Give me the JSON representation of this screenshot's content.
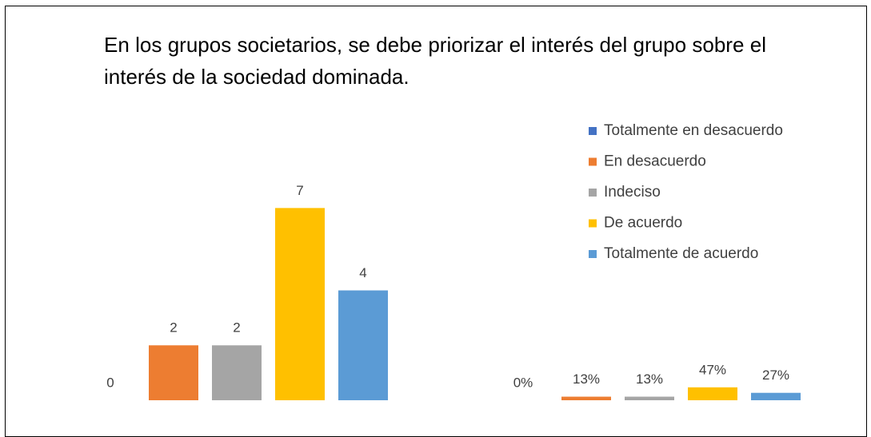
{
  "chart_data": {
    "type": "bar",
    "title": "En los grupos societarios, se debe priorizar el interés del grupo sobre el interés de la sociedad dominada.",
    "categories": [
      null,
      null
    ],
    "series": [
      {
        "name": "Totalmente en desacuerdo",
        "color": "#4472c4",
        "values": [
          0,
          0
        ],
        "value_labels": [
          "0",
          "0%"
        ]
      },
      {
        "name": "En desacuerdo",
        "color": "#ed7d31",
        "values": [
          2,
          0.13
        ],
        "value_labels": [
          "2",
          "13%"
        ]
      },
      {
        "name": "Indeciso",
        "color": "#a5a5a5",
        "values": [
          2,
          0.13
        ],
        "value_labels": [
          "2",
          "13%"
        ]
      },
      {
        "name": "De acuerdo",
        "color": "#ffc000",
        "values": [
          7,
          0.47
        ],
        "value_labels": [
          "7",
          "47%"
        ]
      },
      {
        "name": "Totalmente de acuerdo",
        "color": "#5b9bd5",
        "values": [
          4,
          0.27
        ],
        "value_labels": [
          "4",
          "27%"
        ]
      }
    ],
    "ylim": [
      0,
      8
    ],
    "legend": "right"
  }
}
